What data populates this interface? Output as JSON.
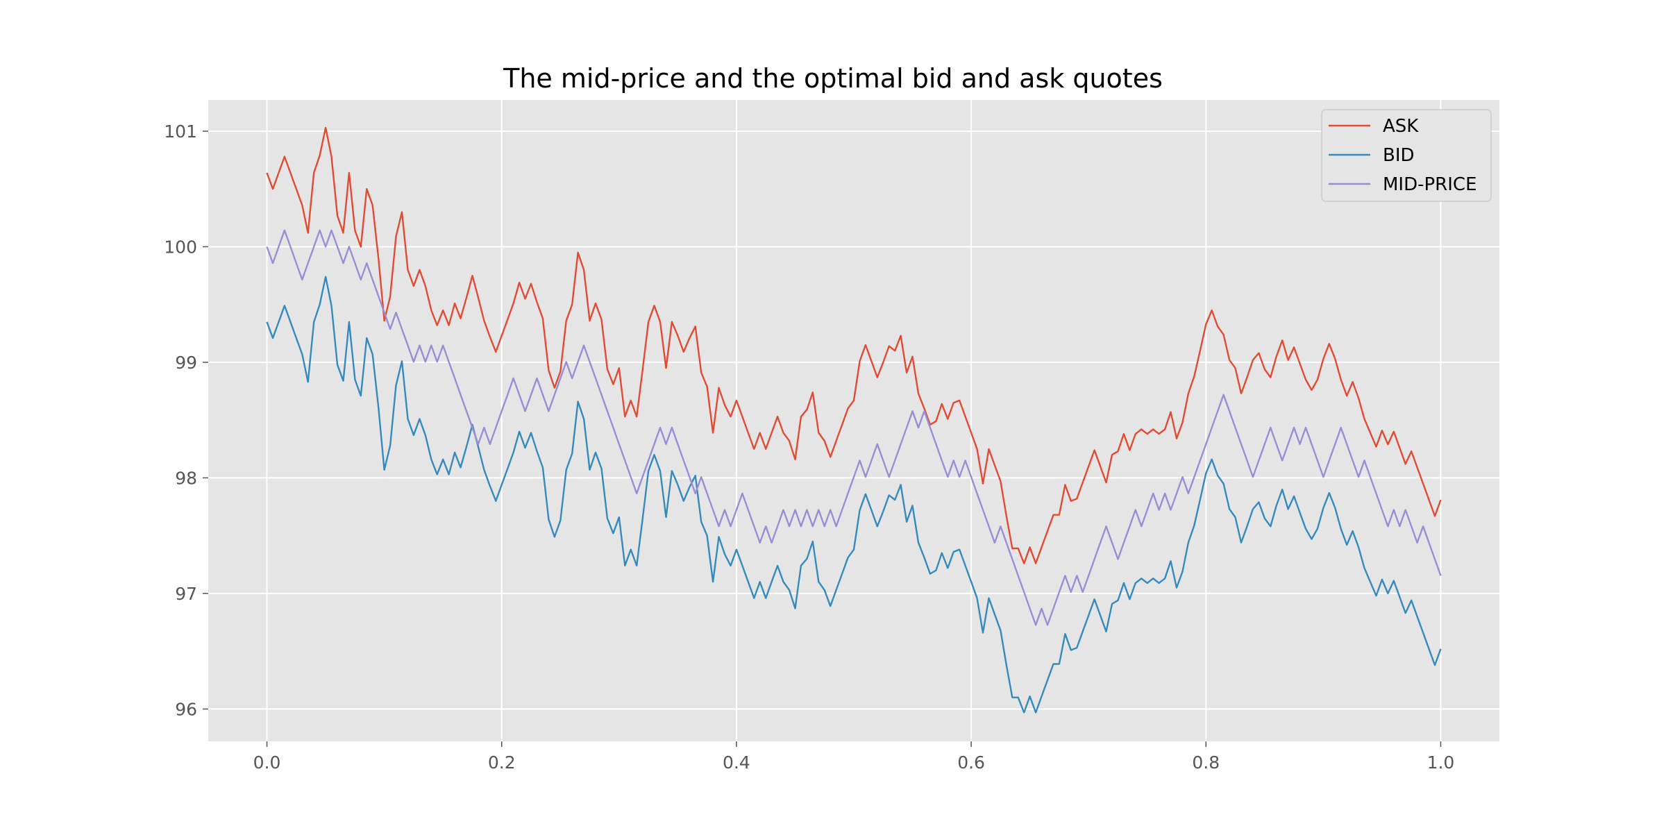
{
  "chart_data": {
    "type": "line",
    "title": "The mid-price and the optimal bid and ask quotes",
    "xlabel": "",
    "ylabel": "",
    "xlim": [
      -0.05,
      1.05
    ],
    "ylim": [
      95.72,
      101.27
    ],
    "xticks": [
      0.0,
      0.2,
      0.4,
      0.6,
      0.8,
      1.0
    ],
    "xtick_labels": [
      "0.0",
      "0.2",
      "0.4",
      "0.6",
      "0.8",
      "1.0"
    ],
    "yticks": [
      96,
      97,
      98,
      99,
      100,
      101
    ],
    "ytick_labels": [
      "96",
      "97",
      "98",
      "99",
      "100",
      "101"
    ],
    "grid": true,
    "legend_position": "top-right",
    "mid_step": 0.1423,
    "x": [
      0.0,
      0.005,
      0.01,
      0.015,
      0.02,
      0.025,
      0.03,
      0.035,
      0.04,
      0.045,
      0.05,
      0.055,
      0.06,
      0.065,
      0.07,
      0.075,
      0.08,
      0.085,
      0.09,
      0.095,
      0.1,
      0.105,
      0.11,
      0.115,
      0.12,
      0.125,
      0.13,
      0.135,
      0.14,
      0.145,
      0.15,
      0.155,
      0.16,
      0.165,
      0.17,
      0.175,
      0.18,
      0.185,
      0.19,
      0.195,
      0.2,
      0.205,
      0.21,
      0.215,
      0.22,
      0.225,
      0.23,
      0.235,
      0.24,
      0.245,
      0.25,
      0.255,
      0.26,
      0.265,
      0.27,
      0.275,
      0.28,
      0.285,
      0.29,
      0.295,
      0.3,
      0.305,
      0.31,
      0.315,
      0.32,
      0.325,
      0.33,
      0.335,
      0.34,
      0.345,
      0.35,
      0.355,
      0.36,
      0.365,
      0.37,
      0.375,
      0.38,
      0.385,
      0.39,
      0.395,
      0.4,
      0.405,
      0.41,
      0.415,
      0.42,
      0.425,
      0.43,
      0.435,
      0.44,
      0.445,
      0.45,
      0.455,
      0.46,
      0.465,
      0.47,
      0.475,
      0.48,
      0.485,
      0.49,
      0.495,
      0.5,
      0.505,
      0.51,
      0.515,
      0.52,
      0.525,
      0.53,
      0.535,
      0.54,
      0.545,
      0.55,
      0.555,
      0.56,
      0.565,
      0.57,
      0.575,
      0.58,
      0.585,
      0.59,
      0.595,
      0.6,
      0.605,
      0.61,
      0.615,
      0.62,
      0.625,
      0.63,
      0.635,
      0.64,
      0.645,
      0.65,
      0.655,
      0.66,
      0.665,
      0.67,
      0.675,
      0.68,
      0.685,
      0.69,
      0.695,
      0.7,
      0.705,
      0.71,
      0.715,
      0.72,
      0.725,
      0.73,
      0.735,
      0.74,
      0.745,
      0.75,
      0.755,
      0.76,
      0.765,
      0.77,
      0.775,
      0.78,
      0.785,
      0.79,
      0.795,
      0.8,
      0.805,
      0.81,
      0.815,
      0.82,
      0.825,
      0.83,
      0.835,
      0.84,
      0.845,
      0.85,
      0.855,
      0.86,
      0.865,
      0.87,
      0.875,
      0.88,
      0.885,
      0.89,
      0.895,
      0.9,
      0.905,
      0.91,
      0.915,
      0.92,
      0.925,
      0.93,
      0.935,
      0.94,
      0.945,
      0.95,
      0.955,
      0.96,
      0.965,
      0.97,
      0.975,
      0.98,
      0.985,
      0.99,
      0.995,
      1.0
    ],
    "series": [
      {
        "name": "ASK",
        "color": "#E24A33",
        "values": [
          100.64,
          100.5,
          100.64,
          100.78,
          100.64,
          100.5,
          100.36,
          100.12,
          100.64,
          100.79,
          101.03,
          100.78,
          100.27,
          100.12,
          100.64,
          100.14,
          100.0,
          100.5,
          100.36,
          99.9,
          99.36,
          99.57,
          100.09,
          100.3,
          99.8,
          99.66,
          99.8,
          99.66,
          99.45,
          99.32,
          99.45,
          99.32,
          99.51,
          99.38,
          99.56,
          99.75,
          99.56,
          99.36,
          99.22,
          99.09,
          99.23,
          99.37,
          99.51,
          99.69,
          99.55,
          99.68,
          99.52,
          99.38,
          98.93,
          98.78,
          98.92,
          99.36,
          99.5,
          99.95,
          99.8,
          99.36,
          99.51,
          99.37,
          98.94,
          98.81,
          98.95,
          98.53,
          98.67,
          98.53,
          98.93,
          99.35,
          99.49,
          99.35,
          98.95,
          99.35,
          99.23,
          99.09,
          99.21,
          99.31,
          98.91,
          98.79,
          98.39,
          98.78,
          98.63,
          98.53,
          98.67,
          98.53,
          98.39,
          98.25,
          98.39,
          98.25,
          98.39,
          98.53,
          98.39,
          98.32,
          98.16,
          98.53,
          98.59,
          98.74,
          98.39,
          98.32,
          98.18,
          98.32,
          98.46,
          98.6,
          98.67,
          99.01,
          99.15,
          99.01,
          98.87,
          99.0,
          99.14,
          99.1,
          99.23,
          98.91,
          99.05,
          98.73,
          98.6,
          98.46,
          98.49,
          98.64,
          98.51,
          98.65,
          98.67,
          98.53,
          98.39,
          98.25,
          97.95,
          98.25,
          98.11,
          97.97,
          97.67,
          97.39,
          97.39,
          97.26,
          97.4,
          97.26,
          97.4,
          97.54,
          97.68,
          97.68,
          97.94,
          97.8,
          97.82,
          97.96,
          98.1,
          98.24,
          98.1,
          97.96,
          98.2,
          98.23,
          98.38,
          98.24,
          98.38,
          98.42,
          98.38,
          98.42,
          98.38,
          98.42,
          98.57,
          98.34,
          98.48,
          98.73,
          98.88,
          99.1,
          99.33,
          99.45,
          99.31,
          99.24,
          99.02,
          98.95,
          98.73,
          98.87,
          99.02,
          99.08,
          98.94,
          98.87,
          99.05,
          99.19,
          99.02,
          99.13,
          98.99,
          98.85,
          98.76,
          98.85,
          99.03,
          99.16,
          99.03,
          98.85,
          98.71,
          98.83,
          98.69,
          98.51,
          98.39,
          98.27,
          98.41,
          98.29,
          98.4,
          98.26,
          98.12,
          98.23,
          98.09,
          97.95,
          97.81,
          97.67,
          97.81
        ]
      },
      {
        "name": "BID",
        "color": "#348ABD",
        "values": [
          99.35,
          99.21,
          99.35,
          99.49,
          99.35,
          99.21,
          99.07,
          98.83,
          99.35,
          99.5,
          99.74,
          99.49,
          98.98,
          98.84,
          99.35,
          98.85,
          98.71,
          99.21,
          99.07,
          98.61,
          98.07,
          98.28,
          98.8,
          99.01,
          98.51,
          98.37,
          98.51,
          98.37,
          98.16,
          98.03,
          98.16,
          98.03,
          98.22,
          98.09,
          98.27,
          98.46,
          98.27,
          98.07,
          97.93,
          97.8,
          97.94,
          98.08,
          98.22,
          98.4,
          98.26,
          98.39,
          98.23,
          98.09,
          97.64,
          97.49,
          97.63,
          98.07,
          98.21,
          98.66,
          98.51,
          98.07,
          98.22,
          98.08,
          97.65,
          97.52,
          97.66,
          97.24,
          97.38,
          97.24,
          97.64,
          98.06,
          98.2,
          98.06,
          97.66,
          98.06,
          97.94,
          97.8,
          97.92,
          98.02,
          97.62,
          97.5,
          97.1,
          97.49,
          97.34,
          97.24,
          97.38,
          97.24,
          97.1,
          96.96,
          97.1,
          96.96,
          97.1,
          97.24,
          97.1,
          97.03,
          96.87,
          97.24,
          97.3,
          97.45,
          97.1,
          97.03,
          96.89,
          97.03,
          97.17,
          97.31,
          97.38,
          97.72,
          97.86,
          97.72,
          97.58,
          97.71,
          97.85,
          97.81,
          97.94,
          97.62,
          97.76,
          97.44,
          97.31,
          97.17,
          97.2,
          97.35,
          97.22,
          97.36,
          97.38,
          97.24,
          97.1,
          96.96,
          96.66,
          96.96,
          96.82,
          96.68,
          96.38,
          96.1,
          96.1,
          95.97,
          96.11,
          95.97,
          96.11,
          96.25,
          96.39,
          96.39,
          96.65,
          96.51,
          96.53,
          96.67,
          96.81,
          96.95,
          96.81,
          96.67,
          96.91,
          96.94,
          97.09,
          96.95,
          97.09,
          97.13,
          97.09,
          97.13,
          97.09,
          97.13,
          97.28,
          97.05,
          97.19,
          97.44,
          97.59,
          97.81,
          98.04,
          98.16,
          98.02,
          97.95,
          97.73,
          97.66,
          97.44,
          97.58,
          97.73,
          97.79,
          97.65,
          97.58,
          97.76,
          97.9,
          97.73,
          97.84,
          97.7,
          97.56,
          97.47,
          97.56,
          97.74,
          97.87,
          97.74,
          97.56,
          97.42,
          97.54,
          97.4,
          97.22,
          97.1,
          96.98,
          97.12,
          97.0,
          97.11,
          96.97,
          96.83,
          96.94,
          96.8,
          96.66,
          96.52,
          96.38,
          96.52
        ]
      },
      {
        "name": "MID-PRICE",
        "color": "#988ED5",
        "pattern": [
          0,
          -1,
          0,
          1,
          0,
          -1,
          -2,
          -1,
          0,
          1,
          0,
          1,
          0,
          -1,
          0,
          -1,
          -2,
          -1,
          -2,
          -3,
          -4,
          -5,
          -4,
          -5,
          -6,
          -7,
          -6,
          -7,
          -6,
          -7,
          -6,
          -7,
          -8,
          -9,
          -10,
          -11,
          -12,
          -11,
          -12,
          -11,
          -10,
          -9,
          -8,
          -9,
          -10,
          -9,
          -8,
          -9,
          -10,
          -9,
          -8,
          -7,
          -8,
          -7,
          -6,
          -7,
          -8,
          -9,
          -10,
          -11,
          -12,
          -13,
          -14,
          -15,
          -14,
          -13,
          -12,
          -11,
          -12,
          -11,
          -12,
          -13,
          -14,
          -15,
          -14,
          -15,
          -16,
          -17,
          -16,
          -17,
          -16,
          -15,
          -16,
          -17,
          -18,
          -17,
          -18,
          -17,
          -16,
          -17,
          -16,
          -17,
          -16,
          -17,
          -16,
          -17,
          -16,
          -17,
          -16,
          -15,
          -14,
          -13,
          -14,
          -13,
          -12,
          -13,
          -14,
          -13,
          -12,
          -11,
          -10,
          -11,
          -10,
          -11,
          -12,
          -13,
          -14,
          -13,
          -14,
          -13,
          -14,
          -15,
          -16,
          -17,
          -18,
          -17,
          -18,
          -19,
          -20,
          -21,
          -22,
          -23,
          -22,
          -23,
          -22,
          -21,
          -20,
          -21,
          -20,
          -21,
          -20,
          -19,
          -18,
          -17,
          -18,
          -19,
          -18,
          -17,
          -16,
          -17,
          -16,
          -15,
          -16,
          -15,
          -16,
          -15,
          -14,
          -15,
          -14,
          -13,
          -12,
          -11,
          -10,
          -9,
          -10,
          -11,
          -12,
          -13,
          -14,
          -13,
          -12,
          -11,
          -12,
          -13,
          -12,
          -11,
          -12,
          -11,
          -12,
          -13,
          -14,
          -13,
          -12,
          -11,
          -12,
          -13,
          -14,
          -13,
          -14,
          -15,
          -16,
          -17,
          -16,
          -17,
          -16,
          -17,
          -18,
          -17,
          -18,
          -19,
          -20,
          -21,
          -20
        ]
      }
    ]
  }
}
